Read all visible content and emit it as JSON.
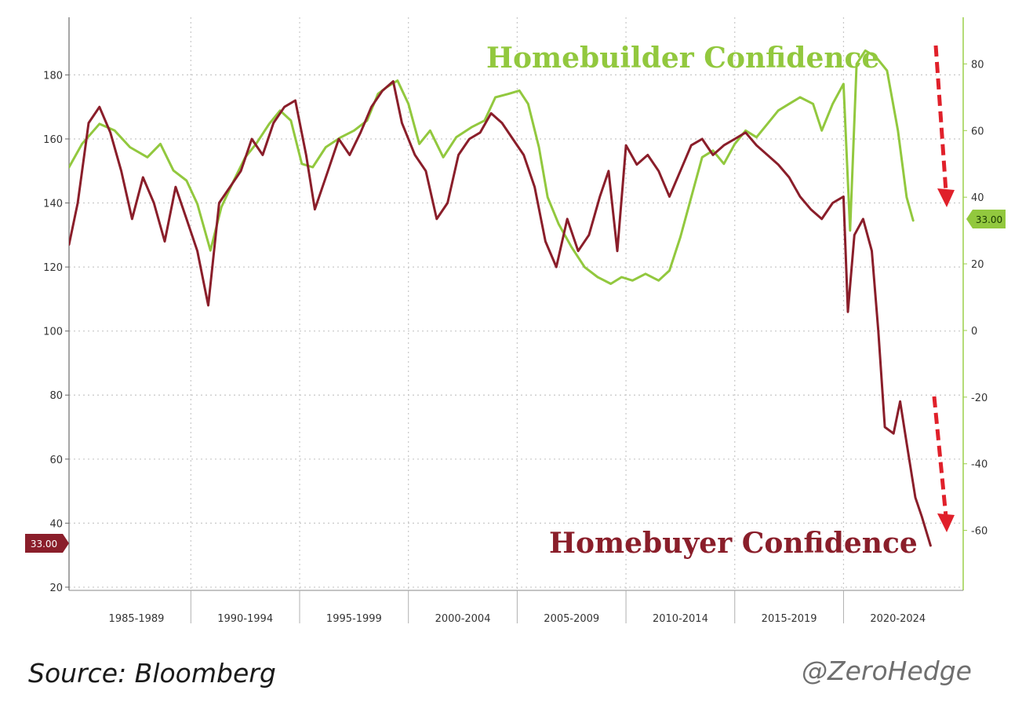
{
  "chart_data": {
    "type": "line",
    "title": "",
    "x_range": [
      1984.4,
      2025.5
    ],
    "period_labels": [
      "1985-1989",
      "1990-1994",
      "1995-1999",
      "2000-2004",
      "2005-2009",
      "2010-2014",
      "2015-2019",
      "2020-2024"
    ],
    "left_axis": {
      "ticks": [
        20,
        40,
        60,
        80,
        100,
        120,
        140,
        160,
        180
      ],
      "range": [
        19,
        198
      ],
      "label": ""
    },
    "right_axis": {
      "ticks": [
        -60,
        -40,
        -20,
        0,
        20,
        40,
        60,
        80
      ],
      "range": [
        -78,
        94
      ],
      "label": ""
    },
    "grid": "dotted",
    "series": [
      {
        "name": "Homebuilder Confidence",
        "axis": "right",
        "color": "#92c83e",
        "last_value_label": "33.00",
        "points": [
          [
            1984.4,
            49
          ],
          [
            1985.0,
            56
          ],
          [
            1985.8,
            62
          ],
          [
            1986.5,
            60
          ],
          [
            1987.2,
            55
          ],
          [
            1988.0,
            52
          ],
          [
            1988.6,
            56
          ],
          [
            1989.2,
            48
          ],
          [
            1989.8,
            45
          ],
          [
            1990.3,
            38
          ],
          [
            1990.9,
            24
          ],
          [
            1991.4,
            37
          ],
          [
            1991.9,
            44
          ],
          [
            1992.5,
            52
          ],
          [
            1993.0,
            56
          ],
          [
            1993.6,
            62
          ],
          [
            1994.1,
            66
          ],
          [
            1994.6,
            63
          ],
          [
            1995.1,
            50
          ],
          [
            1995.6,
            49
          ],
          [
            1996.2,
            55
          ],
          [
            1996.9,
            58
          ],
          [
            1997.5,
            60
          ],
          [
            1998.1,
            63
          ],
          [
            1998.6,
            71
          ],
          [
            1999.0,
            73
          ],
          [
            1999.5,
            75
          ],
          [
            2000.0,
            68
          ],
          [
            2000.5,
            56
          ],
          [
            2001.0,
            60
          ],
          [
            2001.6,
            52
          ],
          [
            2002.2,
            58
          ],
          [
            2002.9,
            61
          ],
          [
            2003.5,
            63
          ],
          [
            2004.0,
            70
          ],
          [
            2004.6,
            71
          ],
          [
            2005.1,
            72
          ],
          [
            2005.5,
            68
          ],
          [
            2006.0,
            55
          ],
          [
            2006.4,
            40
          ],
          [
            2006.9,
            32
          ],
          [
            2007.5,
            25
          ],
          [
            2008.1,
            19
          ],
          [
            2008.7,
            16
          ],
          [
            2009.3,
            14
          ],
          [
            2009.8,
            16
          ],
          [
            2010.3,
            15
          ],
          [
            2010.9,
            17
          ],
          [
            2011.5,
            15
          ],
          [
            2012.0,
            18
          ],
          [
            2012.5,
            28
          ],
          [
            2013.0,
            40
          ],
          [
            2013.5,
            52
          ],
          [
            2014.0,
            54
          ],
          [
            2014.5,
            50
          ],
          [
            2015.0,
            56
          ],
          [
            2015.5,
            60
          ],
          [
            2016.0,
            58
          ],
          [
            2016.5,
            62
          ],
          [
            2017.0,
            66
          ],
          [
            2017.5,
            68
          ],
          [
            2018.0,
            70
          ],
          [
            2018.6,
            68
          ],
          [
            2019.0,
            60
          ],
          [
            2019.5,
            68
          ],
          [
            2020.0,
            74
          ],
          [
            2020.3,
            30
          ],
          [
            2020.6,
            80
          ],
          [
            2021.0,
            84
          ],
          [
            2021.5,
            82
          ],
          [
            2022.0,
            78
          ],
          [
            2022.5,
            60
          ],
          [
            2022.9,
            40
          ],
          [
            2023.2,
            33
          ]
        ]
      },
      {
        "name": "Homebuyer Confidence",
        "axis": "left",
        "color": "#8a1e2a",
        "last_value_label": "33.00",
        "points": [
          [
            1984.4,
            127
          ],
          [
            1984.8,
            140
          ],
          [
            1985.3,
            165
          ],
          [
            1985.8,
            170
          ],
          [
            1986.3,
            162
          ],
          [
            1986.8,
            150
          ],
          [
            1987.3,
            135
          ],
          [
            1987.8,
            148
          ],
          [
            1988.3,
            140
          ],
          [
            1988.8,
            128
          ],
          [
            1989.3,
            145
          ],
          [
            1989.8,
            135
          ],
          [
            1990.3,
            125
          ],
          [
            1990.8,
            108
          ],
          [
            1991.3,
            140
          ],
          [
            1991.8,
            145
          ],
          [
            1992.3,
            150
          ],
          [
            1992.8,
            160
          ],
          [
            1993.3,
            155
          ],
          [
            1993.8,
            165
          ],
          [
            1994.3,
            170
          ],
          [
            1994.8,
            172
          ],
          [
            1995.3,
            155
          ],
          [
            1995.7,
            138
          ],
          [
            1996.3,
            150
          ],
          [
            1996.8,
            160
          ],
          [
            1997.3,
            155
          ],
          [
            1997.8,
            162
          ],
          [
            1998.3,
            170
          ],
          [
            1998.8,
            175
          ],
          [
            1999.3,
            178
          ],
          [
            1999.7,
            165
          ],
          [
            2000.3,
            155
          ],
          [
            2000.8,
            150
          ],
          [
            2001.3,
            135
          ],
          [
            2001.8,
            140
          ],
          [
            2002.3,
            155
          ],
          [
            2002.8,
            160
          ],
          [
            2003.3,
            162
          ],
          [
            2003.8,
            168
          ],
          [
            2004.3,
            165
          ],
          [
            2004.8,
            160
          ],
          [
            2005.3,
            155
          ],
          [
            2005.8,
            145
          ],
          [
            2006.3,
            128
          ],
          [
            2006.8,
            120
          ],
          [
            2007.3,
            135
          ],
          [
            2007.8,
            125
          ],
          [
            2008.3,
            130
          ],
          [
            2008.8,
            142
          ],
          [
            2009.2,
            150
          ],
          [
            2009.6,
            125
          ],
          [
            2010.0,
            158
          ],
          [
            2010.5,
            152
          ],
          [
            2011.0,
            155
          ],
          [
            2011.5,
            150
          ],
          [
            2012.0,
            142
          ],
          [
            2012.5,
            150
          ],
          [
            2013.0,
            158
          ],
          [
            2013.5,
            160
          ],
          [
            2014.0,
            155
          ],
          [
            2014.5,
            158
          ],
          [
            2015.0,
            160
          ],
          [
            2015.5,
            162
          ],
          [
            2016.0,
            158
          ],
          [
            2016.5,
            155
          ],
          [
            2017.0,
            152
          ],
          [
            2017.5,
            148
          ],
          [
            2018.0,
            142
          ],
          [
            2018.5,
            138
          ],
          [
            2019.0,
            135
          ],
          [
            2019.5,
            140
          ],
          [
            2020.0,
            142
          ],
          [
            2020.2,
            106
          ],
          [
            2020.5,
            130
          ],
          [
            2020.9,
            135
          ],
          [
            2021.3,
            125
          ],
          [
            2021.6,
            100
          ],
          [
            2021.9,
            70
          ],
          [
            2022.3,
            68
          ],
          [
            2022.6,
            78
          ],
          [
            2022.9,
            65
          ],
          [
            2023.3,
            48
          ],
          [
            2023.6,
            42
          ],
          [
            2024.0,
            33
          ]
        ]
      }
    ],
    "annotations": [
      {
        "text": "Homebuilder Confidence",
        "color": "#92c83e"
      },
      {
        "text": "Homebuyer Confidence",
        "color": "#8a1e2a"
      }
    ],
    "arrow_color": "#e0202a"
  },
  "footer": {
    "source": "Source: Bloomberg",
    "credit": "@ZeroHedge"
  }
}
